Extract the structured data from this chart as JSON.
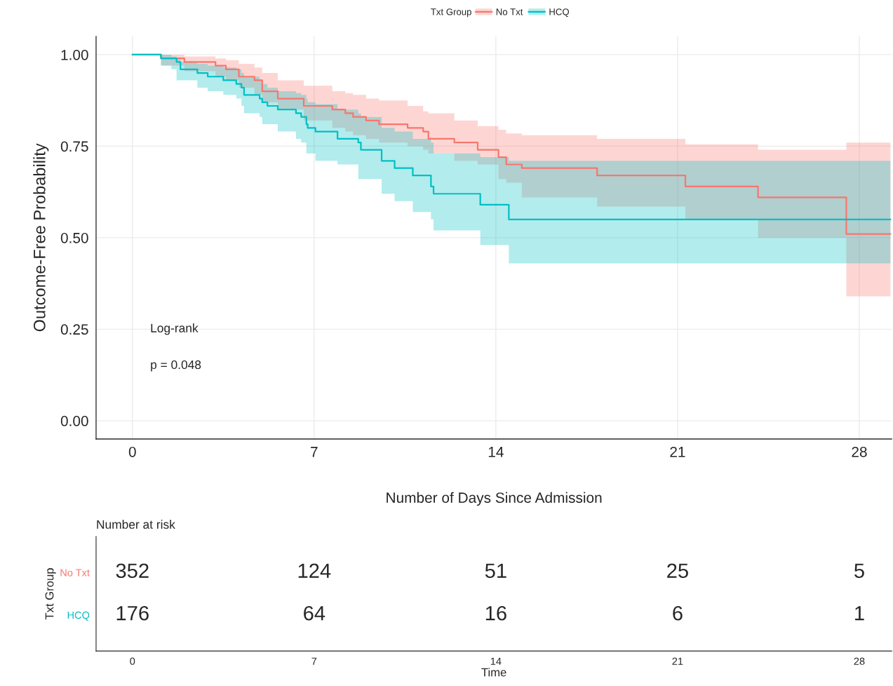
{
  "chart_data": [
    {
      "type": "step",
      "ylabel": "Outcome-Free Probability",
      "xlabel": "Number of Days Since Admission",
      "legend_title": "Txt Group",
      "legend": "top",
      "grid": true,
      "xlim": [
        -1.4,
        29.25
      ],
      "ylim": [
        -0.05,
        1.05
      ],
      "xticks": [
        0,
        7,
        14,
        21,
        28
      ],
      "yticks": [
        {
          "value": 0,
          "label": "0.00"
        },
        {
          "value": 0.25,
          "label": "0.25"
        },
        {
          "value": 0.5,
          "label": "0.50"
        },
        {
          "value": 0.75,
          "label": "0.75"
        },
        {
          "value": 1,
          "label": "1.00"
        }
      ],
      "annotations": [
        "Log-rank",
        "p = 0.048"
      ],
      "series": [
        {
          "name": "No Txt",
          "color": "#f8766d",
          "x": [
            0,
            1.1,
            2.0,
            3.2,
            3.6,
            4.1,
            4.7,
            5.0,
            5.6,
            6.6,
            7.7,
            8.2,
            8.5,
            9.0,
            9.5,
            10.6,
            11.2,
            11.4,
            12.4,
            13.3,
            14.1,
            14.4,
            15.0,
            17.9,
            21.3,
            24.1,
            27.5,
            29.2
          ],
          "values": [
            1.0,
            0.99,
            0.98,
            0.97,
            0.96,
            0.94,
            0.93,
            0.9,
            0.88,
            0.86,
            0.85,
            0.84,
            0.83,
            0.82,
            0.81,
            0.8,
            0.79,
            0.77,
            0.76,
            0.74,
            0.72,
            0.7,
            0.69,
            0.67,
            0.64,
            0.61,
            0.51,
            0.51
          ],
          "lower": [
            1.0,
            0.97,
            0.955,
            0.94,
            0.93,
            0.91,
            0.89,
            0.87,
            0.85,
            0.82,
            0.8,
            0.79,
            0.78,
            0.77,
            0.76,
            0.75,
            0.74,
            0.73,
            0.71,
            0.7,
            0.66,
            0.65,
            0.61,
            0.585,
            0.55,
            0.5,
            0.34,
            0.34
          ],
          "upper": [
            1.0,
            1.0,
            0.995,
            0.99,
            0.985,
            0.975,
            0.965,
            0.95,
            0.93,
            0.915,
            0.9,
            0.895,
            0.89,
            0.88,
            0.875,
            0.86,
            0.845,
            0.84,
            0.82,
            0.805,
            0.795,
            0.785,
            0.78,
            0.77,
            0.755,
            0.74,
            0.76,
            0.76
          ]
        },
        {
          "name": "HCQ",
          "color": "#00bfc4",
          "x": [
            0,
            1.1,
            1.5,
            1.7,
            1.85,
            2.5,
            2.9,
            3.5,
            4.0,
            4.2,
            4.3,
            4.9,
            5.0,
            5.2,
            5.6,
            6.3,
            6.5,
            6.7,
            6.75,
            7.05,
            7.9,
            8.7,
            8.8,
            9.6,
            10.1,
            10.8,
            11.5,
            11.6,
            13.4,
            14.5,
            29.2
          ],
          "values": [
            1.0,
            0.99,
            0.99,
            0.98,
            0.96,
            0.95,
            0.94,
            0.93,
            0.92,
            0.91,
            0.89,
            0.88,
            0.87,
            0.86,
            0.85,
            0.84,
            0.83,
            0.81,
            0.8,
            0.79,
            0.77,
            0.76,
            0.74,
            0.71,
            0.69,
            0.67,
            0.64,
            0.62,
            0.59,
            0.55,
            0.55
          ],
          "lower": [
            1.0,
            0.97,
            0.96,
            0.93,
            0.93,
            0.91,
            0.9,
            0.89,
            0.88,
            0.86,
            0.84,
            0.83,
            0.81,
            0.81,
            0.79,
            0.77,
            0.76,
            0.73,
            0.73,
            0.71,
            0.7,
            0.66,
            0.66,
            0.62,
            0.6,
            0.57,
            0.55,
            0.52,
            0.48,
            0.43,
            0.43
          ],
          "upper": [
            1.0,
            1.0,
            0.995,
            0.99,
            0.98,
            0.975,
            0.97,
            0.965,
            0.96,
            0.95,
            0.94,
            0.93,
            0.92,
            0.91,
            0.9,
            0.895,
            0.89,
            0.88,
            0.87,
            0.865,
            0.85,
            0.84,
            0.83,
            0.8,
            0.79,
            0.77,
            0.76,
            0.73,
            0.72,
            0.71,
            0.71
          ]
        }
      ]
    },
    {
      "type": "heatmap",
      "title": "Number at risk",
      "xlabel": "Time",
      "ylabel": "Txt Group",
      "data_labels": true,
      "categories": [
        "0",
        "7",
        "14",
        "21",
        "28"
      ],
      "y_categories": [
        "No Txt",
        "HCQ"
      ],
      "cells": [
        [
          352,
          124,
          51,
          25,
          5
        ],
        [
          176,
          64,
          16,
          6,
          1
        ]
      ]
    }
  ]
}
